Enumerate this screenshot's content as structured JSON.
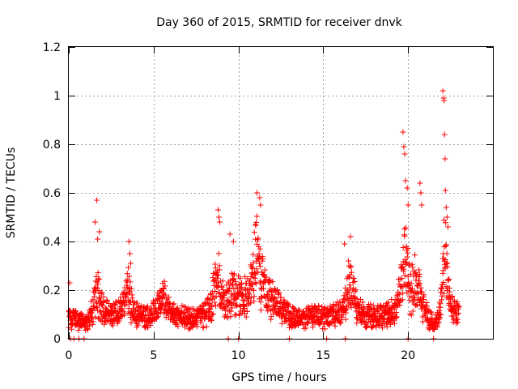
{
  "chart_data": {
    "type": "scatter",
    "title": "Day 360 of 2015, SRMTID for receiver dnvk",
    "xlabel": "GPS time / hours",
    "ylabel": "SRMTID / TECUs",
    "xlim": [
      0,
      25
    ],
    "ylim": [
      0,
      1.2
    ],
    "x_ticks": [
      0,
      5,
      10,
      15,
      20
    ],
    "x_tick_labels": [
      "0",
      "5",
      "10",
      "15",
      "20"
    ],
    "y_ticks": [
      0,
      0.2,
      0.4,
      0.6,
      0.8,
      1.0,
      1.2
    ],
    "y_tick_labels": [
      "0",
      "0.2",
      "0.4",
      "0.6",
      "0.8",
      "1",
      "1.2"
    ],
    "grid": true,
    "marker": "+",
    "series": [
      {
        "name": "SRMTID",
        "color": "#ff0000",
        "sampling_interval_hours": 0.0125,
        "envelope_x": [
          0,
          0.3,
          0.6,
          0.9,
          1.2,
          1.45,
          1.6,
          1.75,
          1.9,
          2.2,
          2.6,
          3.0,
          3.3,
          3.5,
          3.7,
          4.0,
          4.5,
          5.0,
          5.4,
          5.6,
          6.0,
          6.5,
          7.0,
          7.5,
          8.0,
          8.3,
          8.6,
          8.8,
          9.0,
          9.4,
          9.7,
          10.0,
          10.3,
          10.6,
          10.9,
          11.1,
          11.3,
          11.6,
          12.0,
          12.5,
          13.0,
          13.5,
          14.0,
          14.5,
          15.0,
          15.5,
          16.0,
          16.3,
          16.5,
          16.7,
          17.0,
          17.5,
          18.0,
          18.5,
          19.0,
          19.3,
          19.6,
          19.75,
          19.9,
          20.1,
          20.4,
          20.6,
          20.9,
          21.2,
          21.5,
          21.8,
          22.0,
          22.1,
          22.2,
          22.3,
          22.5,
          22.7,
          23.0
        ],
        "envelope_y": [
          0.12,
          0.12,
          0.11,
          0.1,
          0.12,
          0.2,
          0.3,
          0.28,
          0.22,
          0.16,
          0.15,
          0.16,
          0.22,
          0.32,
          0.2,
          0.15,
          0.14,
          0.16,
          0.22,
          0.26,
          0.16,
          0.14,
          0.13,
          0.12,
          0.15,
          0.18,
          0.3,
          0.4,
          0.26,
          0.24,
          0.3,
          0.26,
          0.24,
          0.3,
          0.42,
          0.52,
          0.4,
          0.3,
          0.24,
          0.18,
          0.14,
          0.12,
          0.13,
          0.14,
          0.13,
          0.14,
          0.16,
          0.22,
          0.33,
          0.3,
          0.18,
          0.14,
          0.15,
          0.14,
          0.16,
          0.2,
          0.35,
          0.5,
          0.45,
          0.3,
          0.35,
          0.32,
          0.22,
          0.12,
          0.1,
          0.12,
          0.25,
          0.5,
          0.55,
          0.35,
          0.2,
          0.16,
          0.15
        ],
        "spikes": [
          {
            "x": 0.05,
            "y": 0.23
          },
          {
            "x": 1.55,
            "y": 0.48
          },
          {
            "x": 1.65,
            "y": 0.57
          },
          {
            "x": 1.7,
            "y": 0.41
          },
          {
            "x": 1.8,
            "y": 0.44
          },
          {
            "x": 3.55,
            "y": 0.4
          },
          {
            "x": 3.6,
            "y": 0.35
          },
          {
            "x": 3.65,
            "y": 0.31
          },
          {
            "x": 8.8,
            "y": 0.53
          },
          {
            "x": 8.85,
            "y": 0.5
          },
          {
            "x": 8.9,
            "y": 0.48
          },
          {
            "x": 9.5,
            "y": 0.43
          },
          {
            "x": 9.7,
            "y": 0.4
          },
          {
            "x": 11.1,
            "y": 0.6
          },
          {
            "x": 11.25,
            "y": 0.58
          },
          {
            "x": 11.3,
            "y": 0.55
          },
          {
            "x": 11.0,
            "y": 0.47
          },
          {
            "x": 16.25,
            "y": 0.39
          },
          {
            "x": 16.6,
            "y": 0.42
          },
          {
            "x": 19.7,
            "y": 0.85
          },
          {
            "x": 19.75,
            "y": 0.79
          },
          {
            "x": 19.8,
            "y": 0.76
          },
          {
            "x": 19.85,
            "y": 0.65
          },
          {
            "x": 19.95,
            "y": 0.62
          },
          {
            "x": 20.0,
            "y": 0.55
          },
          {
            "x": 20.7,
            "y": 0.64
          },
          {
            "x": 20.75,
            "y": 0.6
          },
          {
            "x": 20.8,
            "y": 0.55
          },
          {
            "x": 22.05,
            "y": 1.02
          },
          {
            "x": 22.1,
            "y": 0.99
          },
          {
            "x": 22.12,
            "y": 0.98
          },
          {
            "x": 22.15,
            "y": 0.84
          },
          {
            "x": 22.18,
            "y": 0.74
          },
          {
            "x": 22.2,
            "y": 0.61
          },
          {
            "x": 22.25,
            "y": 0.54
          },
          {
            "x": 22.3,
            "y": 0.5
          },
          {
            "x": 22.35,
            "y": 0.46
          }
        ],
        "zero_points_x": [
          0.1,
          0.3,
          0.6,
          0.9,
          9.4,
          10.0,
          13.0,
          15.2,
          16.3,
          20.0,
          21.5
        ]
      }
    ]
  }
}
